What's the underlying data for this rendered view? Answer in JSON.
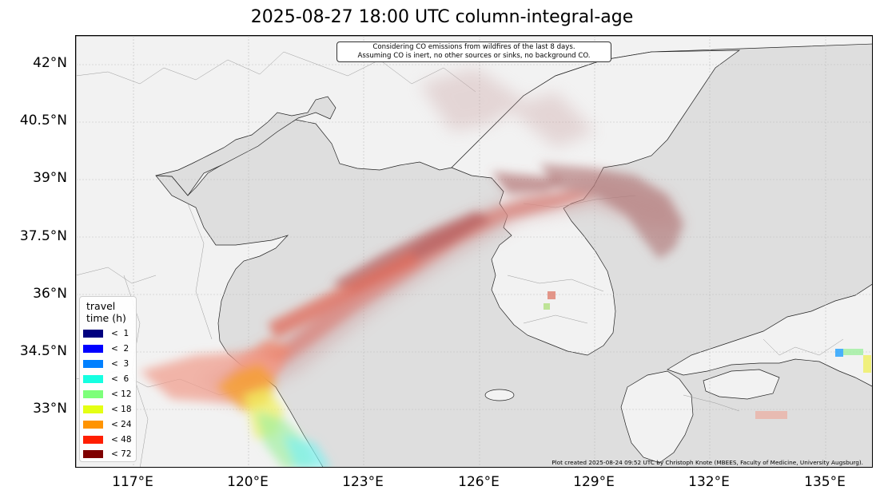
{
  "title": "2025-08-27 18:00 UTC column-integral-age",
  "note": {
    "line1": "Considering CO emissions from wildfires of the last 8 days.",
    "line2": "Assuming CO is inert, no other sources or sinks, no background CO."
  },
  "y_axis": {
    "labels": [
      "42°N",
      "40.5°N",
      "39°N",
      "37.5°N",
      "36°N",
      "34.5°N",
      "33°N"
    ]
  },
  "x_axis": {
    "labels": [
      "117°E",
      "120°E",
      "123°E",
      "126°E",
      "129°E",
      "132°E",
      "135°E"
    ]
  },
  "legend": {
    "title_line1": "travel",
    "title_line2": "time (h)",
    "items": [
      {
        "label": "<  1",
        "color": "#00007f"
      },
      {
        "label": "<  2",
        "color": "#0000ff"
      },
      {
        "label": "<  3",
        "color": "#0080ff"
      },
      {
        "label": "<  6",
        "color": "#15ffe1"
      },
      {
        "label": "< 12",
        "color": "#7dff7a"
      },
      {
        "label": "< 18",
        "color": "#e4ff13"
      },
      {
        "label": "< 24",
        "color": "#ff9400"
      },
      {
        "label": "< 48",
        "color": "#ff1e00"
      },
      {
        "label": "< 72",
        "color": "#7f0000"
      }
    ]
  },
  "credit": "Plot created 2025-08-24 09:52 UTC by Christoph Knote (MBEES, Faculty of Medicine, University Augsburg).",
  "colors": {
    "land": "#f2f2f2",
    "sea": "#dedede"
  }
}
